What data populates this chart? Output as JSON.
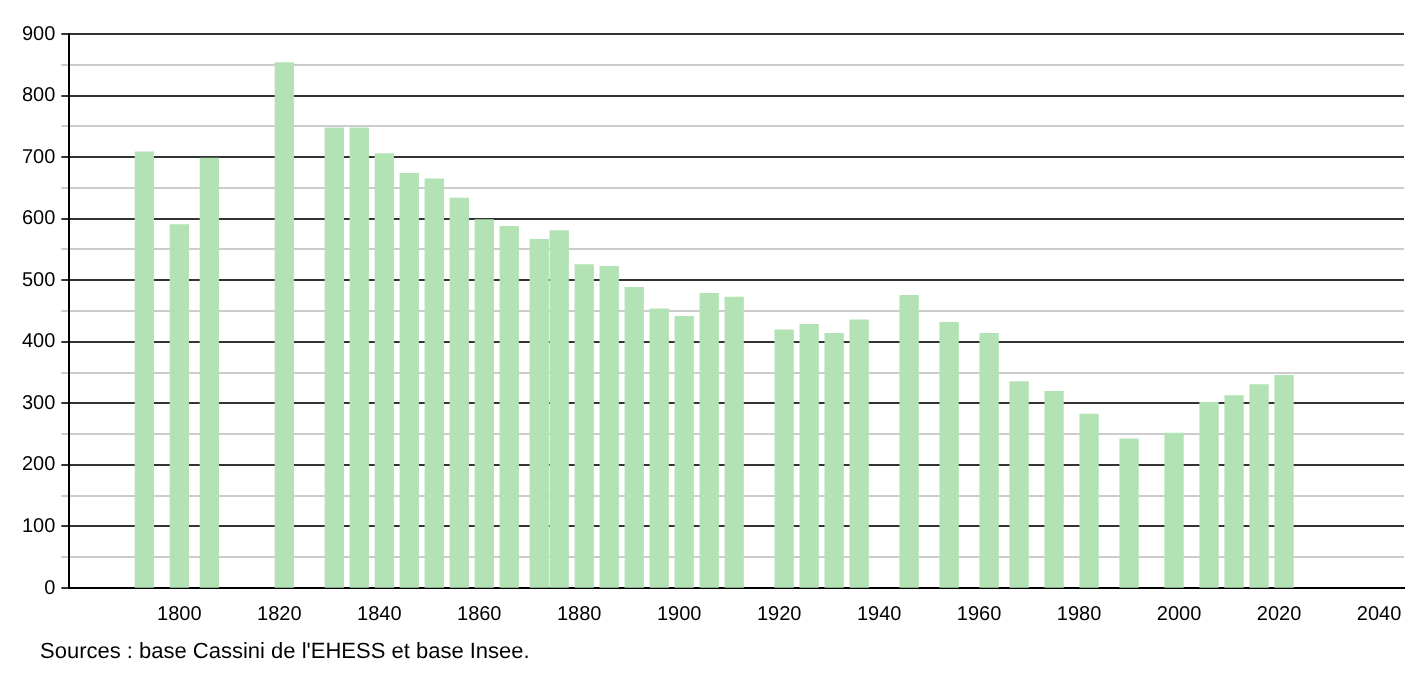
{
  "chart_data": {
    "type": "bar",
    "x": [
      1793,
      1800,
      1806,
      1821,
      1831,
      1836,
      1841,
      1846,
      1851,
      1856,
      1861,
      1866,
      1872,
      1876,
      1881,
      1886,
      1891,
      1896,
      1901,
      1906,
      1911,
      1921,
      1926,
      1931,
      1936,
      1946,
      1954,
      1962,
      1968,
      1975,
      1982,
      1990,
      1999,
      2006,
      2011,
      2016,
      2021
    ],
    "values": [
      708,
      590,
      698,
      853,
      747,
      747,
      705,
      673,
      664,
      633,
      598,
      587,
      566,
      580,
      525,
      522,
      488,
      453,
      441,
      478,
      472,
      419,
      428,
      413,
      435,
      475,
      431,
      413,
      335,
      319,
      282,
      242,
      251,
      301,
      312,
      330,
      345
    ],
    "color": "#b3e2b5",
    "xlim": [
      1778,
      2045
    ],
    "xticks": [
      1800,
      1820,
      1840,
      1860,
      1880,
      1900,
      1920,
      1940,
      1960,
      1980,
      2000,
      2020,
      2040
    ],
    "ylim": [
      0,
      900
    ],
    "yticks": [
      0,
      {
        "value": 50,
        "label": null
      },
      100,
      {
        "value": 150,
        "label": null
      },
      200,
      {
        "value": 250,
        "label": null
      },
      300,
      {
        "value": 350,
        "label": null
      },
      400,
      {
        "value": 450,
        "label": null
      },
      500,
      {
        "value": 550,
        "label": null
      },
      600,
      {
        "value": 650,
        "label": null
      },
      700,
      {
        "value": 750,
        "label": null
      },
      800,
      {
        "value": 850,
        "label": null
      },
      900
    ],
    "grid": "y",
    "annotations": [
      "Sources : base Cassini de l'EHESS et base Insee."
    ]
  }
}
